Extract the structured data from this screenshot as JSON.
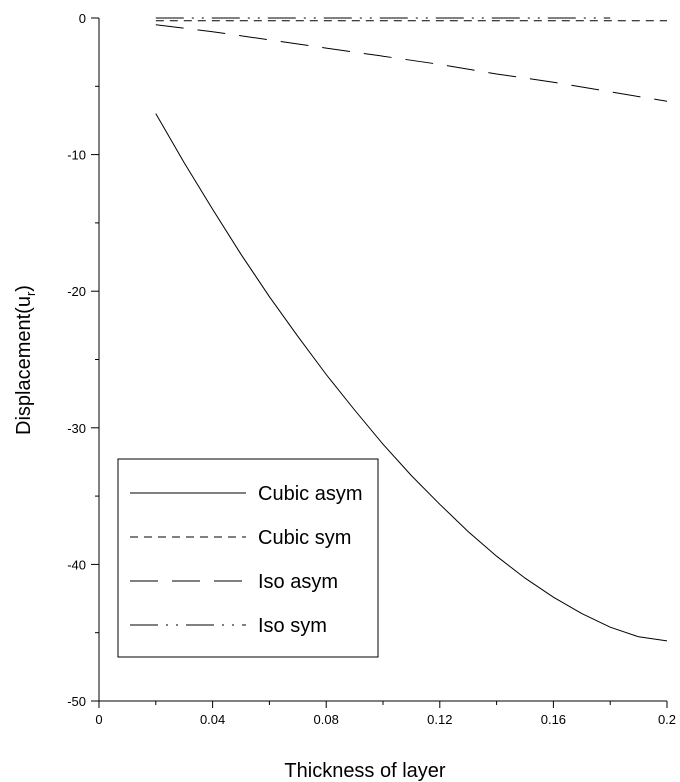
{
  "chart_data": {
    "type": "line",
    "title": "",
    "xlabel": "Thickness of layer",
    "ylabel_main": "Displacement(u",
    "ylabel_sub": "r",
    "ylabel_close": ")",
    "xlim": [
      0,
      0.2
    ],
    "ylim": [
      -50,
      0
    ],
    "x_ticks": [
      "0",
      "0.04",
      "0.08",
      "0.12",
      "0.16",
      "0.2"
    ],
    "y_ticks": [
      "0",
      "-10",
      "-20",
      "-30",
      "-40",
      "-50"
    ],
    "legend_position": "bottom-left",
    "grid": false,
    "series": [
      {
        "name": "Cubic asym",
        "dash": "solid",
        "x": [
          0.02,
          0.03,
          0.04,
          0.05,
          0.06,
          0.07,
          0.08,
          0.09,
          0.1,
          0.11,
          0.12,
          0.13,
          0.14,
          0.15,
          0.16,
          0.17,
          0.18,
          0.19,
          0.2
        ],
        "y": [
          -7.0,
          -10.6,
          -14.0,
          -17.3,
          -20.4,
          -23.3,
          -26.1,
          -28.7,
          -31.2,
          -33.5,
          -35.6,
          -37.6,
          -39.4,
          -41.0,
          -42.4,
          -43.6,
          -44.6,
          -45.3,
          -45.6
        ]
      },
      {
        "name": "Cubic sym",
        "dash": "short-dash",
        "x": [
          0.02,
          0.2
        ],
        "y": [
          -0.2,
          -0.2
        ]
      },
      {
        "name": "Iso asym",
        "dash": "long-dash",
        "x": [
          0.02,
          0.04,
          0.06,
          0.08,
          0.1,
          0.12,
          0.14,
          0.16,
          0.18,
          0.2
        ],
        "y": [
          -0.5,
          -1.0,
          -1.6,
          -2.2,
          -2.8,
          -3.4,
          -4.1,
          -4.7,
          -5.4,
          -6.1
        ]
      },
      {
        "name": "Iso sym",
        "dash": "dash-dot-dot",
        "x": [
          0.02,
          0.18
        ],
        "y": [
          0.0,
          0.0
        ]
      }
    ]
  }
}
